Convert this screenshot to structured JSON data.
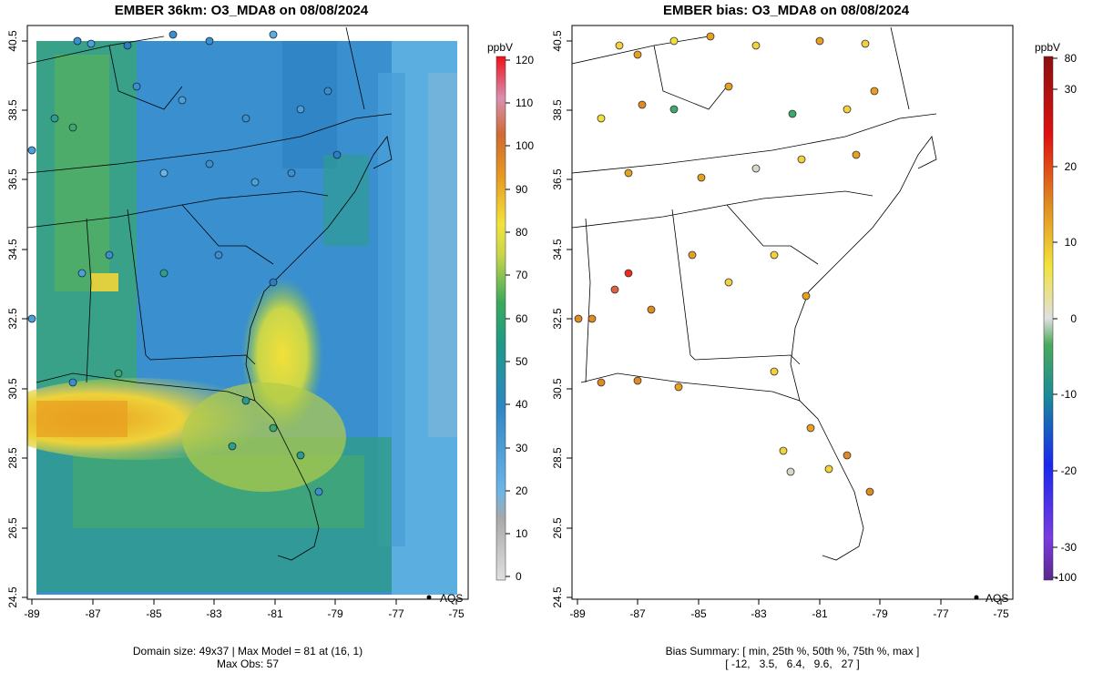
{
  "left_panel": {
    "title": "EMBER 36km: O3_MDA8 on 08/08/2024",
    "footer_line1": "Domain size: 49x37 | Max Model = 81 at (16, 1)",
    "footer_line2": "Max Obs: 57",
    "colorbar_unit": "ppbV",
    "colorbar_ticks": [
      "120",
      "110",
      "100",
      "90",
      "80",
      "70",
      "60",
      "50",
      "40",
      "30",
      "20",
      "10",
      "0"
    ],
    "legend_label": "AQS"
  },
  "right_panel": {
    "title": "EMBER bias: O3_MDA8 on 08/08/2024",
    "footer_line1": "Bias Summary: [ min, 25th %, 50th %, 75th %, max ]",
    "footer_line2": "[ -12,   3.5,   6.4,   9.6,   27 ]",
    "colorbar_unit": "ppbV",
    "colorbar_ticks": [
      "80",
      "30",
      "20",
      "10",
      "0",
      "-10",
      "-20",
      "-30",
      "-100"
    ],
    "legend_label": "AQS"
  },
  "axes": {
    "x_ticks": [
      "-89",
      "-87",
      "-85",
      "-83",
      "-81",
      "-79",
      "-77",
      "-75"
    ],
    "y_ticks": [
      "40.5",
      "38.5",
      "36.5",
      "34.5",
      "32.5",
      "30.5",
      "28.5",
      "26.5",
      "24.5"
    ]
  },
  "colors": {
    "scale_low": "#d9d9d9",
    "scale_blue_light": "#56a9e0",
    "scale_blue": "#2a7fc0",
    "scale_green": "#3aa96a",
    "scale_yellow": "#f2e33a",
    "scale_orange": "#e88a1a",
    "scale_red": "#ee1a1a",
    "scale_pink": "#e07aa0"
  }
}
